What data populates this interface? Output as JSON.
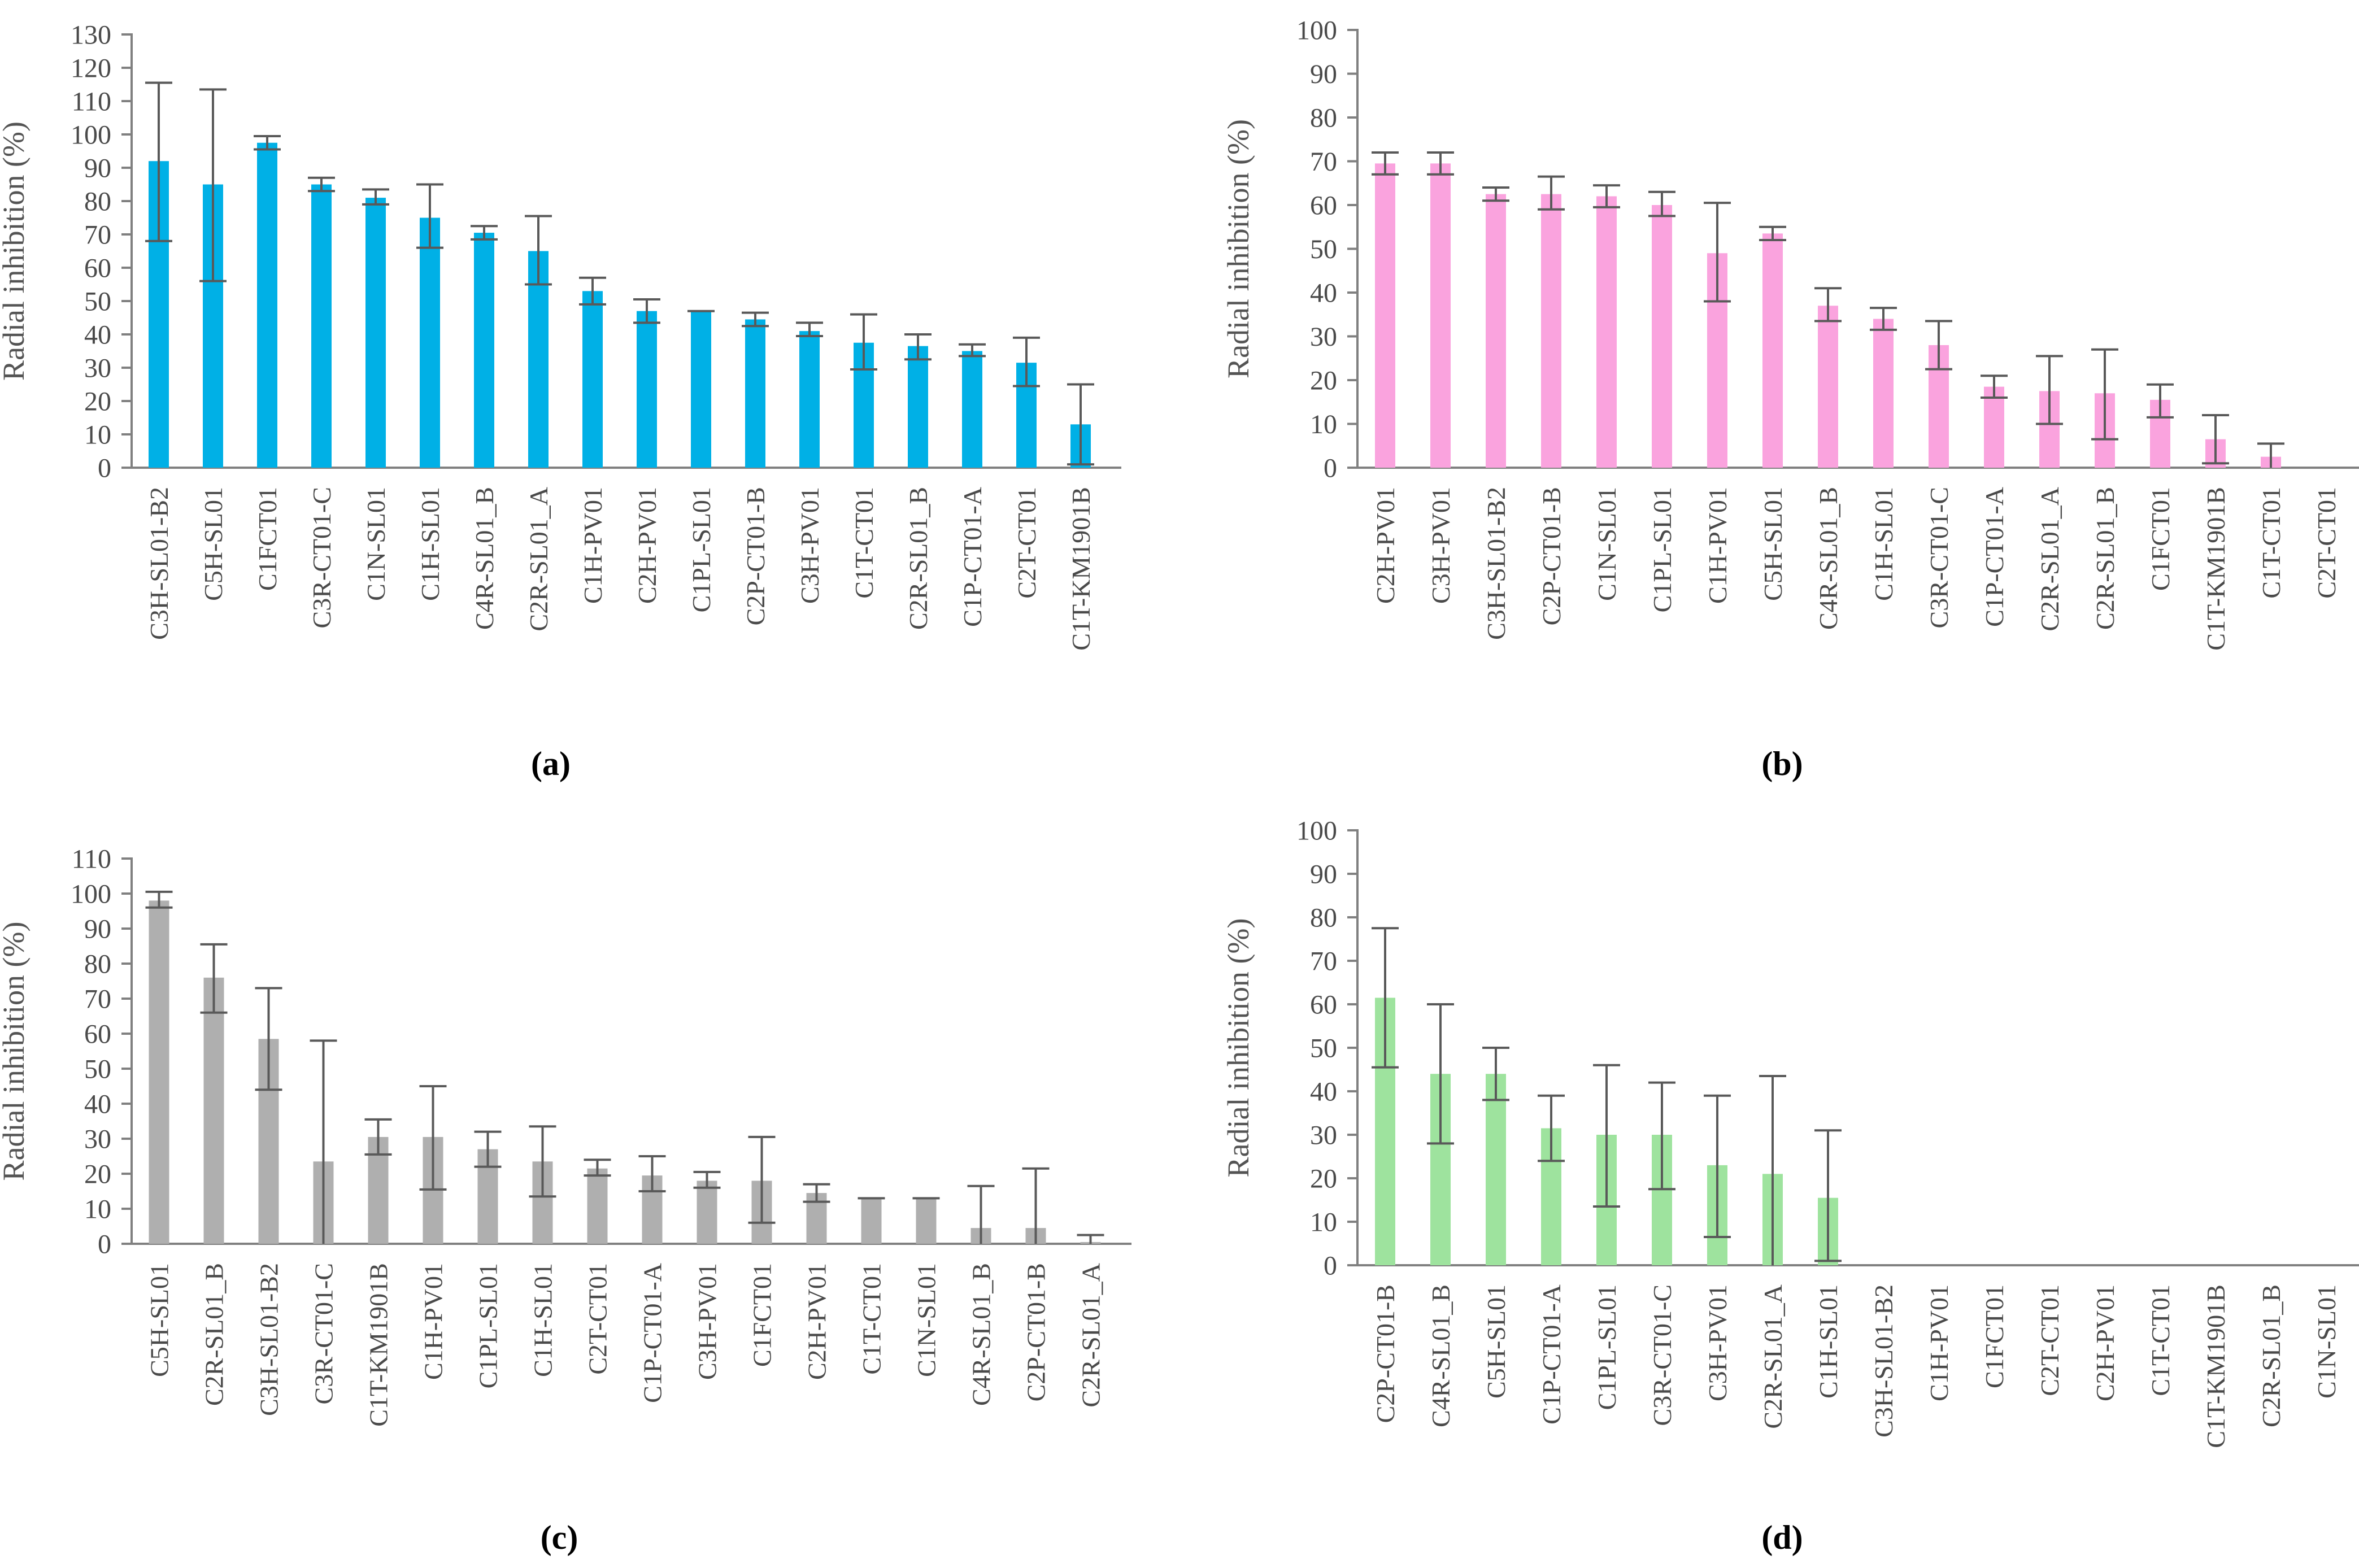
{
  "figure": {
    "background": "#ffffff",
    "axis_color": "#808080",
    "error_bar_color": "#595959",
    "tick_label_color": "#4a4a4a",
    "axis_title_color": "#545454",
    "caption_color": "#000000"
  },
  "chart_data": [
    {
      "type": "bar",
      "caption": "(a)",
      "title": "",
      "xlabel": "",
      "ylabel": "Radial inhibition (%)",
      "bar_color": "#00B0E6",
      "ylim": [
        0,
        130
      ],
      "ytick_step": 10,
      "grid": false,
      "legend": "none",
      "categories": [
        "C3H-SL01-B2",
        "C5H-SL01",
        "C1FCT01",
        "C3R-CT01-C",
        "C1N-SL01",
        "C1H-SL01",
        "C4R-SL01_B",
        "C2R-SL01_A",
        "C1H-PV01",
        "C2H-PV01",
        "C1PL-SL01",
        "C2P-CT01-B",
        "C3H-PV01",
        "C1T-CT01",
        "C2R-SL01_B",
        "C1P-CT01-A",
        "C2T-CT01",
        "C1T-KM1901B"
      ],
      "values": [
        92,
        85,
        97.5,
        85,
        81,
        75,
        70.5,
        65,
        53,
        47,
        47,
        44.5,
        41,
        37.5,
        36.5,
        35,
        31.5,
        13
      ],
      "error_low": [
        68,
        56,
        95.5,
        83,
        79,
        66,
        68.5,
        55,
        49,
        43.5,
        47,
        42.5,
        39.5,
        29.5,
        32.5,
        33.5,
        24.5,
        1
      ],
      "error_high": [
        115.5,
        113.5,
        99.5,
        87,
        83.5,
        85,
        72.5,
        75.5,
        57,
        50.5,
        47,
        46.5,
        43.5,
        46,
        40,
        37,
        39,
        25
      ]
    },
    {
      "type": "bar",
      "caption": "(b)",
      "title": "",
      "xlabel": "",
      "ylabel": "Radial inhibition  (%)",
      "bar_color": "#FAA3DE",
      "ylim": [
        0,
        100
      ],
      "ytick_step": 10,
      "grid": false,
      "legend": "none",
      "categories": [
        "C2H-PV01",
        "C3H-PV01",
        "C3H-SL01-B2",
        "C2P-CT01-B",
        "C1N-SL01",
        "C1PL-SL01",
        "C1H-PV01",
        "C5H-SL01",
        "C4R-SL01_B",
        "C1H-SL01",
        "C3R-CT01-C",
        "C1P-CT01-A",
        "C2R-SL01_A",
        "C2R-SL01_B",
        "C1FCT01",
        "C1T-KM1901B",
        "C1T-CT01",
        "C2T-CT01"
      ],
      "values": [
        69.5,
        69.5,
        62.5,
        62.5,
        62,
        60,
        49,
        53.5,
        37,
        34,
        28,
        18.5,
        17.5,
        17,
        15.5,
        6.5,
        2.5,
        0
      ],
      "error_low": [
        67,
        67,
        61,
        59,
        59.5,
        57.5,
        38,
        52,
        33.5,
        31.5,
        22.5,
        16,
        10,
        6.5,
        11.5,
        1,
        0,
        0
      ],
      "error_high": [
        72,
        72,
        64,
        66.5,
        64.5,
        63,
        60.5,
        55,
        41,
        36.5,
        33.5,
        21,
        25.5,
        27,
        19,
        12,
        5.5,
        0
      ]
    },
    {
      "type": "bar",
      "caption": "(c)",
      "title": "",
      "xlabel": "",
      "ylabel": "Radial inhibition (%)",
      "bar_color": "#AFAFAF",
      "ylim": [
        0,
        110
      ],
      "ytick_step": 10,
      "grid": false,
      "legend": "none",
      "categories": [
        "C5H-SL01",
        "C2R-SL01_B",
        "C3H-SL01-B2",
        "C3R-CT01-C",
        "C1T-KM1901B",
        "C1H-PV01",
        "C1PL-SL01",
        "C1H-SL01",
        "C2T-CT01",
        "C1P-CT01-A",
        "C3H-PV01",
        "C1FCT01",
        "C2H-PV01",
        "C1T-CT01",
        "C1N-SL01",
        "C4R-SL01_B",
        "C2P-CT01-B",
        "C2R-SL01_A"
      ],
      "values": [
        98,
        76,
        58.5,
        23.5,
        30.5,
        30.5,
        27,
        23.5,
        21.5,
        19.5,
        18,
        18,
        14.5,
        13,
        13,
        4.5,
        4.5,
        0.5
      ],
      "error_low": [
        96,
        66,
        44,
        0,
        25.5,
        15.5,
        22,
        13.5,
        19.5,
        15,
        16,
        6,
        12,
        13,
        13,
        0,
        0,
        0
      ],
      "error_high": [
        100.5,
        85.5,
        73,
        58,
        35.5,
        45,
        32,
        33.5,
        24,
        25,
        20.5,
        30.5,
        17,
        13,
        13,
        16.5,
        21.5,
        2.5
      ]
    },
    {
      "type": "bar",
      "caption": "(d)",
      "title": "",
      "xlabel": "",
      "ylabel": "Radial inhibition (%)",
      "bar_color": "#9EE39E",
      "ylim": [
        0,
        100
      ],
      "ytick_step": 10,
      "grid": false,
      "legend": "none",
      "categories": [
        "C2P-CT01-B",
        "C4R-SL01_B",
        "C5H-SL01",
        "C1P-CT01-A",
        "C1PL-SL01",
        "C3R-CT01-C",
        "C3H-PV01",
        "C2R-SL01_A",
        "C1H-SL01",
        "C3H-SL01-B2",
        "C1H-PV01",
        "C1FCT01",
        "C2T-CT01",
        "C2H-PV01",
        "C1T-CT01",
        "C1T-KM1901B",
        "C2R-SL01_B",
        "C1N-SL01"
      ],
      "values": [
        61.5,
        44,
        44,
        31.5,
        30,
        30,
        23,
        21,
        15.5,
        0,
        0,
        0,
        0,
        0,
        0,
        0,
        0,
        0
      ],
      "error_low": [
        45.5,
        28,
        38,
        24,
        13.5,
        17.5,
        6.5,
        0,
        1,
        0,
        0,
        0,
        0,
        0,
        0,
        0,
        0,
        0
      ],
      "error_high": [
        77.5,
        60,
        50,
        39,
        46,
        42,
        39,
        43.5,
        31,
        0,
        0,
        0,
        0,
        0,
        0,
        0,
        0,
        0
      ]
    }
  ]
}
